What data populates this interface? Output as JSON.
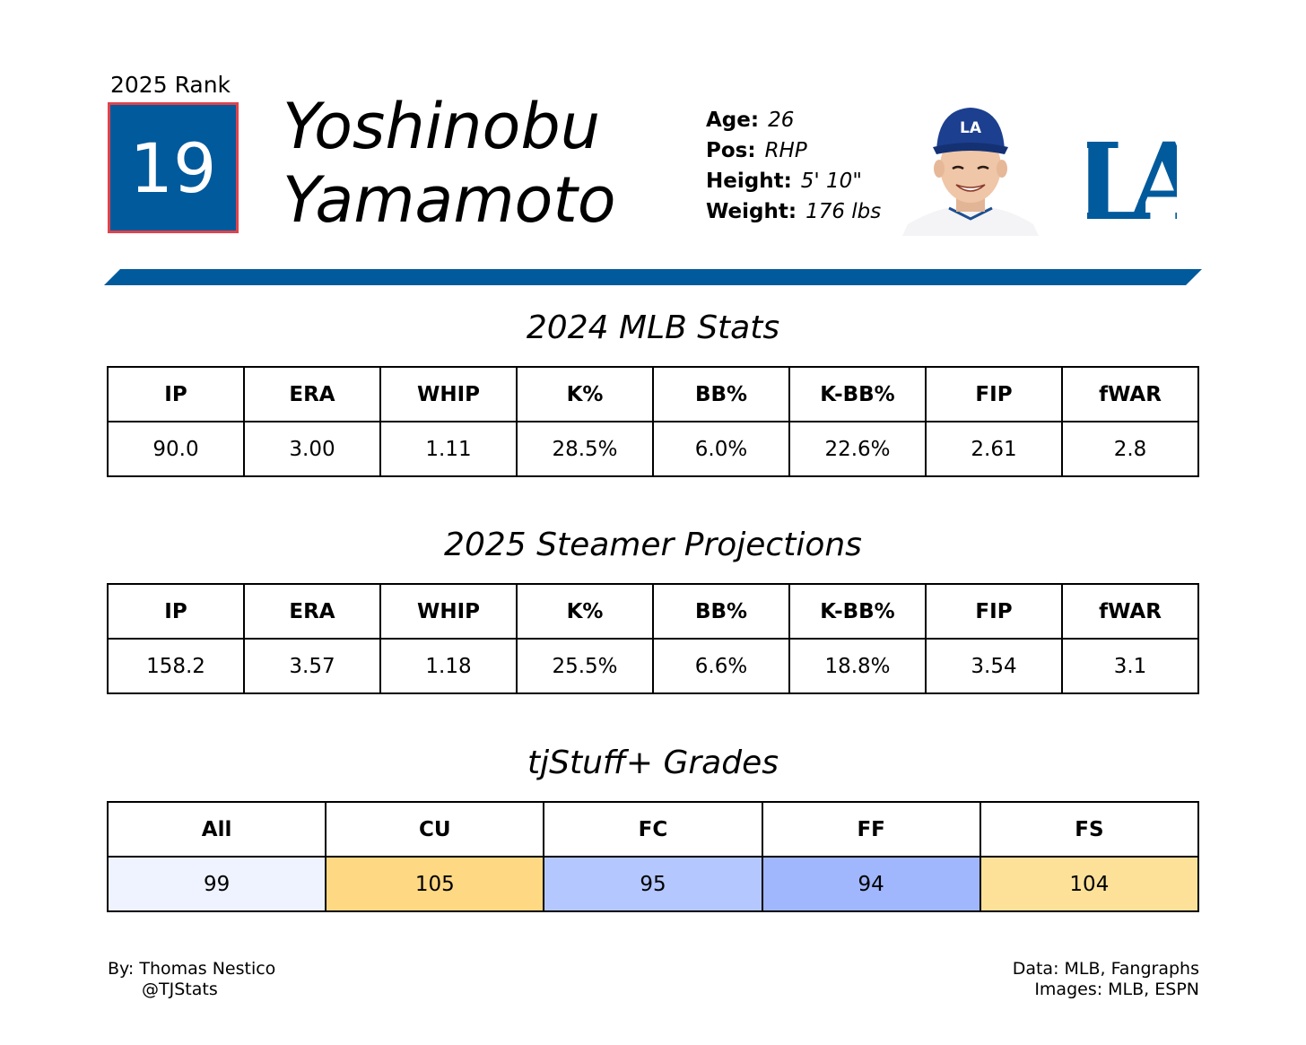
{
  "header": {
    "rank_label": "2025 Rank",
    "rank_value": "19",
    "first_name": "Yoshinobu",
    "last_name": "Yamamoto",
    "bio": [
      {
        "key": "Age",
        "value": "26"
      },
      {
        "key": "Pos",
        "value": "RHP"
      },
      {
        "key": "Height",
        "value": "5' 10\""
      },
      {
        "key": "Weight",
        "value": "176 lbs"
      }
    ],
    "cap_logo_text": "LA",
    "team_logo_text": "LA"
  },
  "colors": {
    "team_blue": "#005a9c",
    "rank_border": "#e0434b"
  },
  "mlb_stats": {
    "title": "2024 MLB Stats",
    "headers": [
      "IP",
      "ERA",
      "WHIP",
      "K%",
      "BB%",
      "K-BB%",
      "FIP",
      "fWAR"
    ],
    "values": [
      "90.0",
      "3.00",
      "1.11",
      "28.5%",
      "6.0%",
      "22.6%",
      "2.61",
      "2.8"
    ]
  },
  "projections": {
    "title": "2025 Steamer Projections",
    "headers": [
      "IP",
      "ERA",
      "WHIP",
      "K%",
      "BB%",
      "K-BB%",
      "FIP",
      "fWAR"
    ],
    "values": [
      "158.2",
      "3.57",
      "1.18",
      "25.5%",
      "6.6%",
      "18.8%",
      "3.54",
      "3.1"
    ]
  },
  "grades": {
    "title": "tjStuff+ Grades",
    "headers": [
      "All",
      "CU",
      "FC",
      "FF",
      "FS"
    ],
    "values": [
      "99",
      "105",
      "95",
      "94",
      "104"
    ],
    "cell_colors": [
      "#eef3ff",
      "#fed883",
      "#b4c7fe",
      "#a0b6fd",
      "#fde199"
    ]
  },
  "footer": {
    "author": "By: Thomas Nestico",
    "handle": "@TJStats",
    "data_credit": "Data: MLB, Fangraphs",
    "image_credit": "Images: MLB, ESPN"
  }
}
